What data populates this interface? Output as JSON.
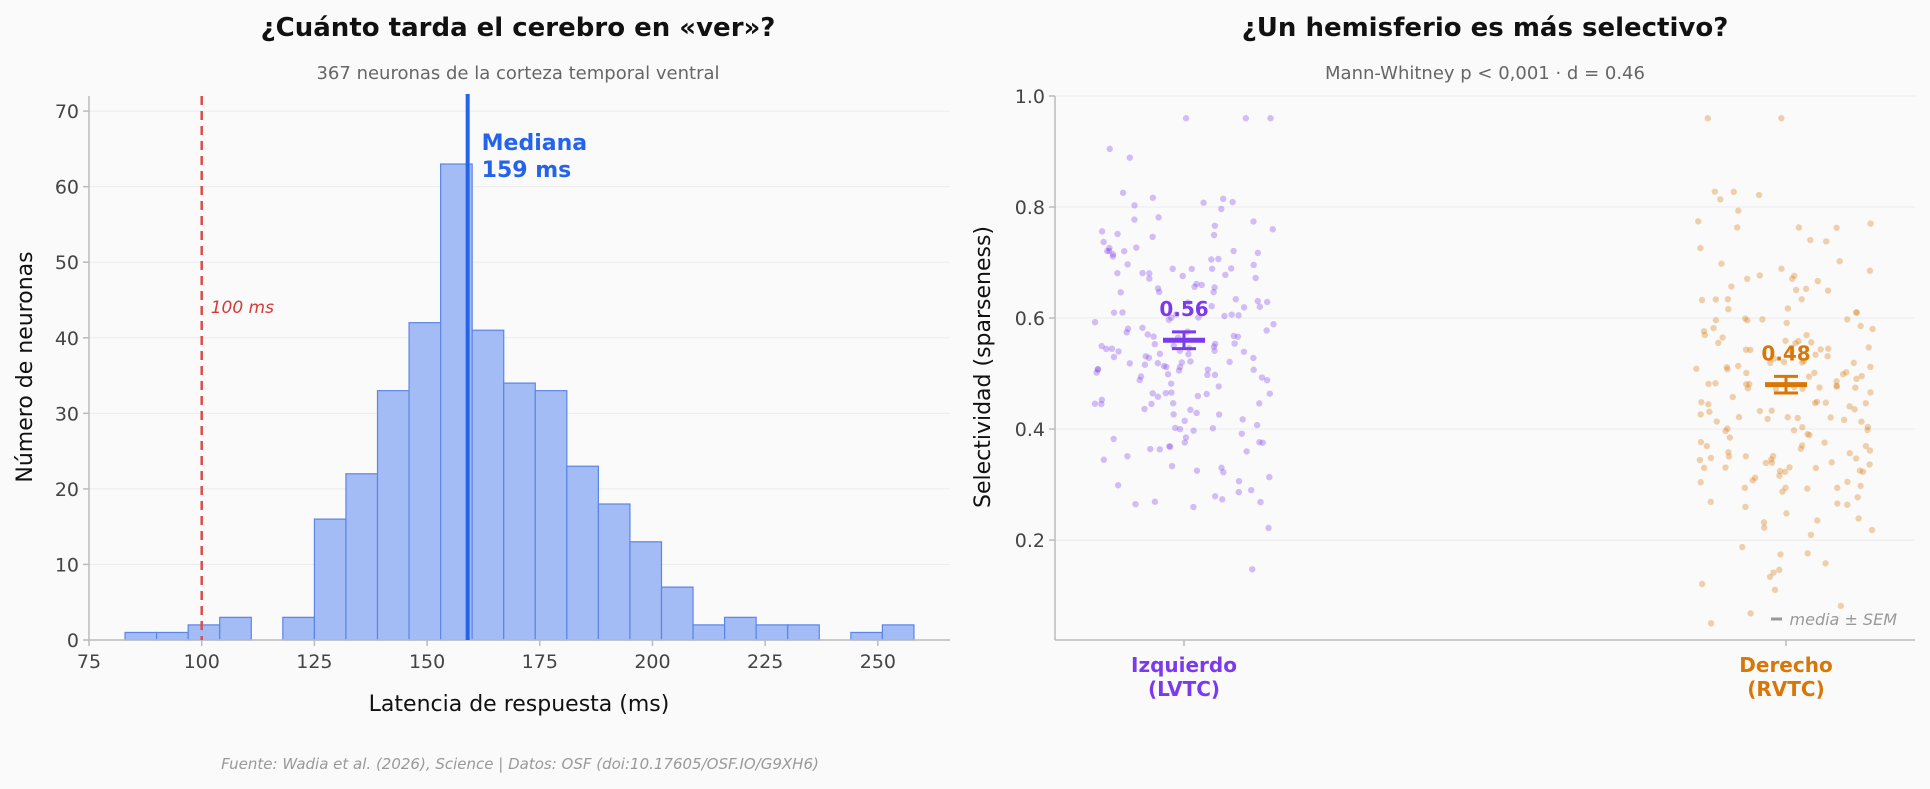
{
  "footer": {
    "source": "Fuente: Wadia et al. (2026), Science | Datos: OSF (doi:10.17605/OSF.IO/G9XH6)"
  },
  "colors": {
    "background": "#fafafa",
    "hist_fill": "#a4bcf5",
    "hist_edge": "#5b85e6",
    "median_line": "#2563eb",
    "threshold_line": "#dc4c4c",
    "left_group": "#7c3aed",
    "right_group": "#d97706",
    "grid": "#ececec"
  },
  "chart_data": [
    {
      "type": "bar",
      "title": "¿Cuánto tarda el cerebro en «ver»?",
      "subtitle": "367 neuronas de la corteza temporal ventral",
      "xlabel": "Latencia de respuesta (ms)",
      "ylabel": "Número de neuronas",
      "xlim": [
        75,
        266
      ],
      "ylim": [
        0,
        72
      ],
      "xticks": [
        "75",
        "100",
        "125",
        "150",
        "175",
        "200",
        "225",
        "250"
      ],
      "yticks": [
        "0",
        "10",
        "20",
        "30",
        "40",
        "50",
        "60",
        "70"
      ],
      "grid": "horizontal",
      "bin_width": 7,
      "bins_start": [
        83,
        90,
        97,
        104,
        111,
        118,
        125,
        132,
        139,
        146,
        153,
        160,
        167,
        174,
        181,
        188,
        195,
        202,
        209,
        216,
        223,
        230,
        237,
        244,
        251
      ],
      "values": [
        1,
        1,
        2,
        3,
        0,
        3,
        16,
        22,
        33,
        42,
        63,
        41,
        34,
        33,
        23,
        18,
        13,
        7,
        2,
        3,
        2,
        2,
        0,
        1,
        2
      ],
      "median": {
        "value": 159,
        "label_line1": "Mediana",
        "label_line2": "159 ms"
      },
      "threshold": {
        "value": 100,
        "label": "100 ms"
      }
    },
    {
      "type": "scatter",
      "title": "¿Un hemisferio es más selectivo?",
      "subtitle": "Mann-Whitney p < 0,001 · d = 0.46",
      "xlabel": "",
      "ylabel": "Selectividad (sparseness)",
      "ylim": [
        0.02,
        1.0
      ],
      "yticks": [
        "0.2",
        "0.4",
        "0.6",
        "0.8",
        "1.0"
      ],
      "grid": "horizontal",
      "legend": {
        "label": "media ± SEM",
        "position": "bottom-right"
      },
      "groups": [
        {
          "name_line1": "Izquierdo",
          "name_line2": "(LVTC)",
          "mean": 0.56,
          "mean_label": "0.56",
          "sem": 0.015,
          "n": 180
        },
        {
          "name_line1": "Derecho",
          "name_line2": "(RVTC)",
          "mean": 0.48,
          "mean_label": "0.48",
          "sem": 0.015,
          "n": 187
        }
      ]
    }
  ]
}
